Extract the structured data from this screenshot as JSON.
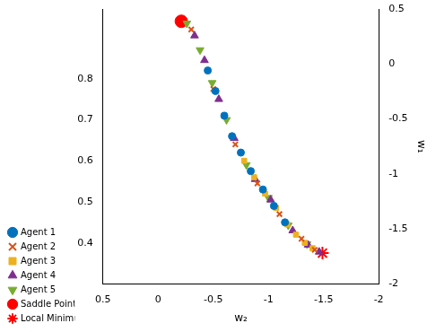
{
  "chart_data": {
    "type": "scatter",
    "x_label": "w₂",
    "y2_label": "w₁",
    "xlim": [
      -2,
      0.5
    ],
    "xticks": [
      -2,
      -1.5,
      -1,
      -0.5,
      0,
      0.5
    ],
    "ylim": [
      0.3,
      0.97
    ],
    "yticks": [
      0.4,
      0.5,
      0.6,
      0.7,
      0.8
    ],
    "y2lim": [
      -2,
      0.5
    ],
    "y2ticks": [
      -2,
      -1.5,
      -1,
      -0.5,
      0,
      0.5
    ],
    "grid": false,
    "legend": "lower left",
    "series": [
      {
        "name": "Agent 1",
        "color": "#0072BD",
        "marker": "circle",
        "x": [
          -0.45,
          -0.52,
          -0.6,
          -0.67,
          -0.75,
          -0.84,
          -0.95,
          -1.05,
          -1.15
        ],
        "values": [
          0.82,
          0.77,
          0.71,
          0.66,
          0.62,
          0.575,
          0.53,
          0.49,
          0.45
        ]
      },
      {
        "name": "Agent 2",
        "color": "#D95319",
        "marker": "x",
        "x": [
          -0.3,
          -0.5,
          -0.7,
          -0.9,
          -1.1,
          -1.3,
          -1.42
        ],
        "values": [
          0.92,
          0.775,
          0.64,
          0.545,
          0.47,
          0.41,
          0.383
        ]
      },
      {
        "name": "Agent 3",
        "color": "#EDB120",
        "marker": "square",
        "x": [
          -0.78,
          -0.87,
          -0.97,
          -1.07,
          -1.17,
          -1.25,
          -1.33,
          -1.4
        ],
        "values": [
          0.6,
          0.56,
          0.52,
          0.485,
          0.445,
          0.42,
          0.4,
          0.387
        ]
      },
      {
        "name": "Agent 4",
        "color": "#7E2F8E",
        "marker": "triangle",
        "x": [
          -0.33,
          -0.42,
          -0.55,
          -0.69,
          -0.88,
          -1.02,
          -1.22,
          -1.36,
          -1.46
        ],
        "values": [
          0.905,
          0.845,
          0.75,
          0.655,
          0.555,
          0.505,
          0.43,
          0.395,
          0.378
        ]
      },
      {
        "name": "Agent 5",
        "color": "#77AC30",
        "marker": "triangle_down",
        "x": [
          -0.26,
          -0.38,
          -0.49,
          -0.62,
          -0.8,
          -1.0,
          -1.18,
          -1.35
        ],
        "values": [
          0.935,
          0.87,
          0.79,
          0.7,
          0.59,
          0.51,
          0.443,
          0.397
        ]
      },
      {
        "name": "Saddle Point",
        "color": "#FF0000",
        "marker": "big_circle",
        "x": [
          -0.21
        ],
        "values": [
          0.94
        ]
      },
      {
        "name": "Local Minimum",
        "color": "#FF0000",
        "marker": "star",
        "x": [
          -1.49
        ],
        "values": [
          0.375
        ]
      }
    ]
  }
}
